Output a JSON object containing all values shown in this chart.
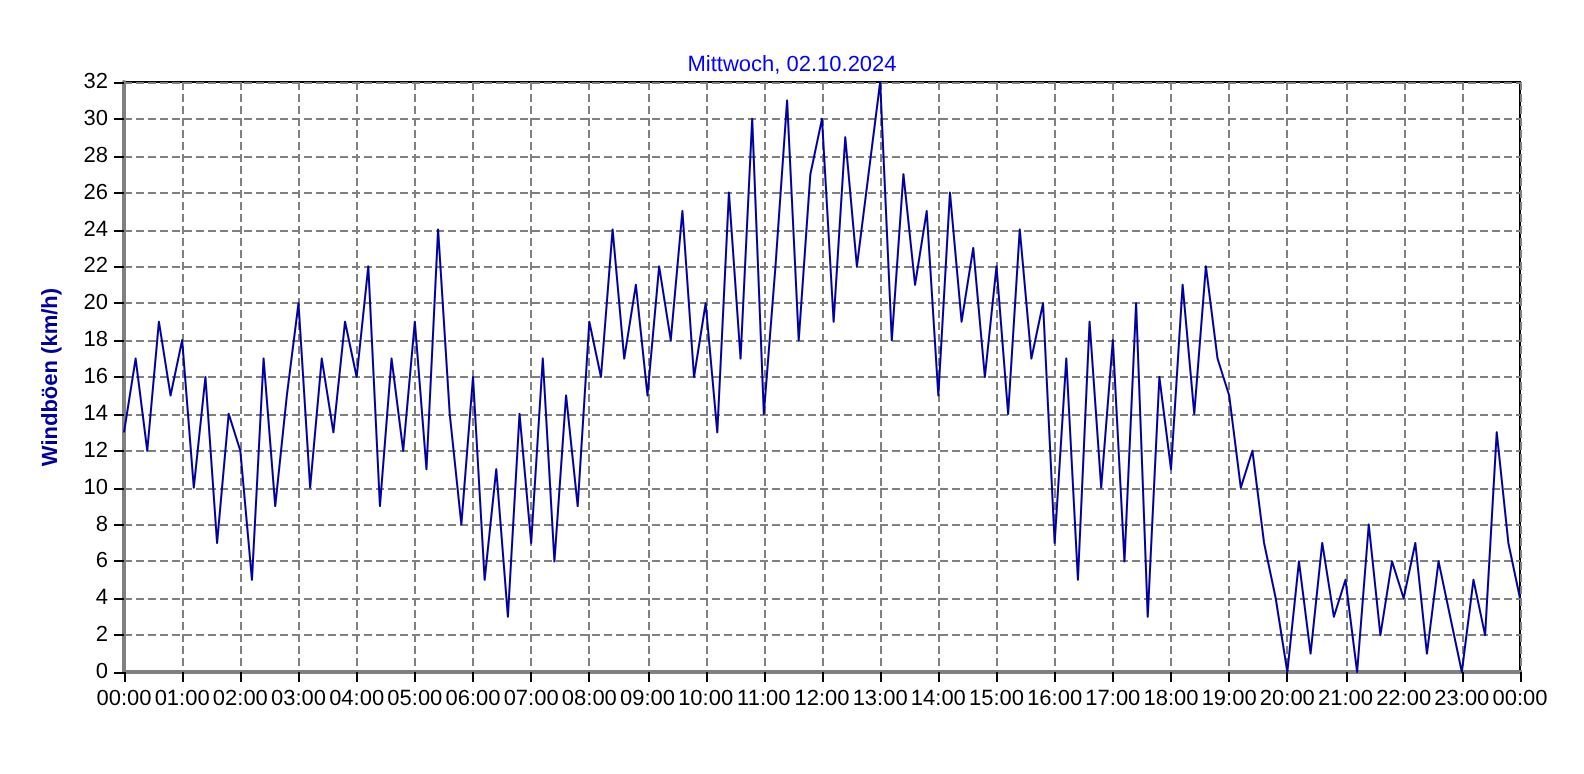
{
  "chart_data": {
    "type": "line",
    "title": "Mittwoch, 02.10.2024",
    "ylabel": "Windböen (km/h)",
    "x": [
      0,
      0.2,
      0.4,
      0.6,
      0.8,
      1,
      1.2,
      1.4,
      1.6,
      1.8,
      2,
      2.2,
      2.4,
      2.6,
      2.8,
      3,
      3.2,
      3.4,
      3.6,
      3.8,
      4,
      4.2,
      4.4,
      4.6,
      4.8,
      5,
      5.2,
      5.4,
      5.6,
      5.8,
      6,
      6.2,
      6.4,
      6.6,
      6.8,
      7,
      7.2,
      7.4,
      7.6,
      7.8,
      8,
      8.2,
      8.4,
      8.6,
      8.8,
      9,
      9.2,
      9.4,
      9.6,
      9.8,
      10,
      10.2,
      10.4,
      10.6,
      10.8,
      11,
      11.2,
      11.4,
      11.6,
      11.8,
      12,
      12.2,
      12.4,
      12.6,
      12.8,
      13,
      13.2,
      13.4,
      13.6,
      13.8,
      14,
      14.2,
      14.4,
      14.6,
      14.8,
      15,
      15.2,
      15.4,
      15.6,
      15.8,
      16,
      16.2,
      16.4,
      16.6,
      16.8,
      17,
      17.2,
      17.4,
      17.6,
      17.8,
      18,
      18.2,
      18.4,
      18.6,
      18.8,
      19,
      19.2,
      19.4,
      19.6,
      19.8,
      20,
      20.2,
      20.4,
      20.6,
      20.8,
      21,
      21.2,
      21.4,
      21.6,
      21.8,
      22,
      22.2,
      22.4,
      22.6,
      22.8,
      23,
      23.2,
      23.4,
      23.6,
      23.8,
      24
    ],
    "series": [
      {
        "color": "#0000a0",
        "values": [
          13,
          17,
          12,
          19,
          15,
          18,
          10,
          16,
          7,
          14,
          12,
          5,
          17,
          9,
          15,
          20,
          10,
          17,
          13,
          19,
          16,
          22,
          9,
          17,
          12,
          19,
          11,
          24,
          14,
          8,
          16,
          5,
          11,
          3,
          14,
          7,
          17,
          6,
          15,
          9,
          19,
          16,
          24,
          17,
          21,
          15,
          22,
          18,
          25,
          16,
          20,
          13,
          26,
          17,
          30,
          14,
          22,
          31,
          18,
          27,
          30,
          19,
          29,
          22,
          27,
          32,
          18,
          27,
          21,
          25,
          15,
          26,
          19,
          23,
          16,
          22,
          14,
          24,
          17,
          20,
          7,
          17,
          5,
          19,
          10,
          18,
          6,
          20,
          3,
          16,
          11,
          21,
          14,
          22,
          17,
          15,
          10,
          12,
          7,
          4,
          0,
          6,
          1,
          7,
          3,
          5,
          0,
          8,
          2,
          6,
          4,
          7,
          1,
          6,
          3,
          0,
          5,
          2,
          13,
          7,
          4
        ]
      }
    ],
    "xlim": [
      0,
      24
    ],
    "xticks": [
      {
        "value": 0,
        "label": "00:00"
      },
      {
        "value": 1,
        "label": "01:00"
      },
      {
        "value": 2,
        "label": "02:00"
      },
      {
        "value": 3,
        "label": "03:00"
      },
      {
        "value": 4,
        "label": "04:00"
      },
      {
        "value": 5,
        "label": "05:00"
      },
      {
        "value": 6,
        "label": "06:00"
      },
      {
        "value": 7,
        "label": "07:00"
      },
      {
        "value": 8,
        "label": "08:00"
      },
      {
        "value": 9,
        "label": "09:00"
      },
      {
        "value": 10,
        "label": "10:00"
      },
      {
        "value": 11,
        "label": "11:00"
      },
      {
        "value": 12,
        "label": "12:00"
      },
      {
        "value": 13,
        "label": "13:00"
      },
      {
        "value": 14,
        "label": "14:00"
      },
      {
        "value": 15,
        "label": "15:00"
      },
      {
        "value": 16,
        "label": "16:00"
      },
      {
        "value": 17,
        "label": "17:00"
      },
      {
        "value": 18,
        "label": "18:00"
      },
      {
        "value": 19,
        "label": "19:00"
      },
      {
        "value": 20,
        "label": "20:00"
      },
      {
        "value": 21,
        "label": "21:00"
      },
      {
        "value": 22,
        "label": "22:00"
      },
      {
        "value": 23,
        "label": "23:00"
      },
      {
        "value": 24,
        "label": "00:00"
      }
    ],
    "ylim": [
      0,
      32
    ],
    "yticks": [
      0,
      2,
      4,
      6,
      8,
      10,
      12,
      14,
      16,
      18,
      20,
      22,
      24,
      26,
      28,
      30,
      32
    ],
    "grid": true,
    "marker": "none",
    "line_style": "solid"
  }
}
